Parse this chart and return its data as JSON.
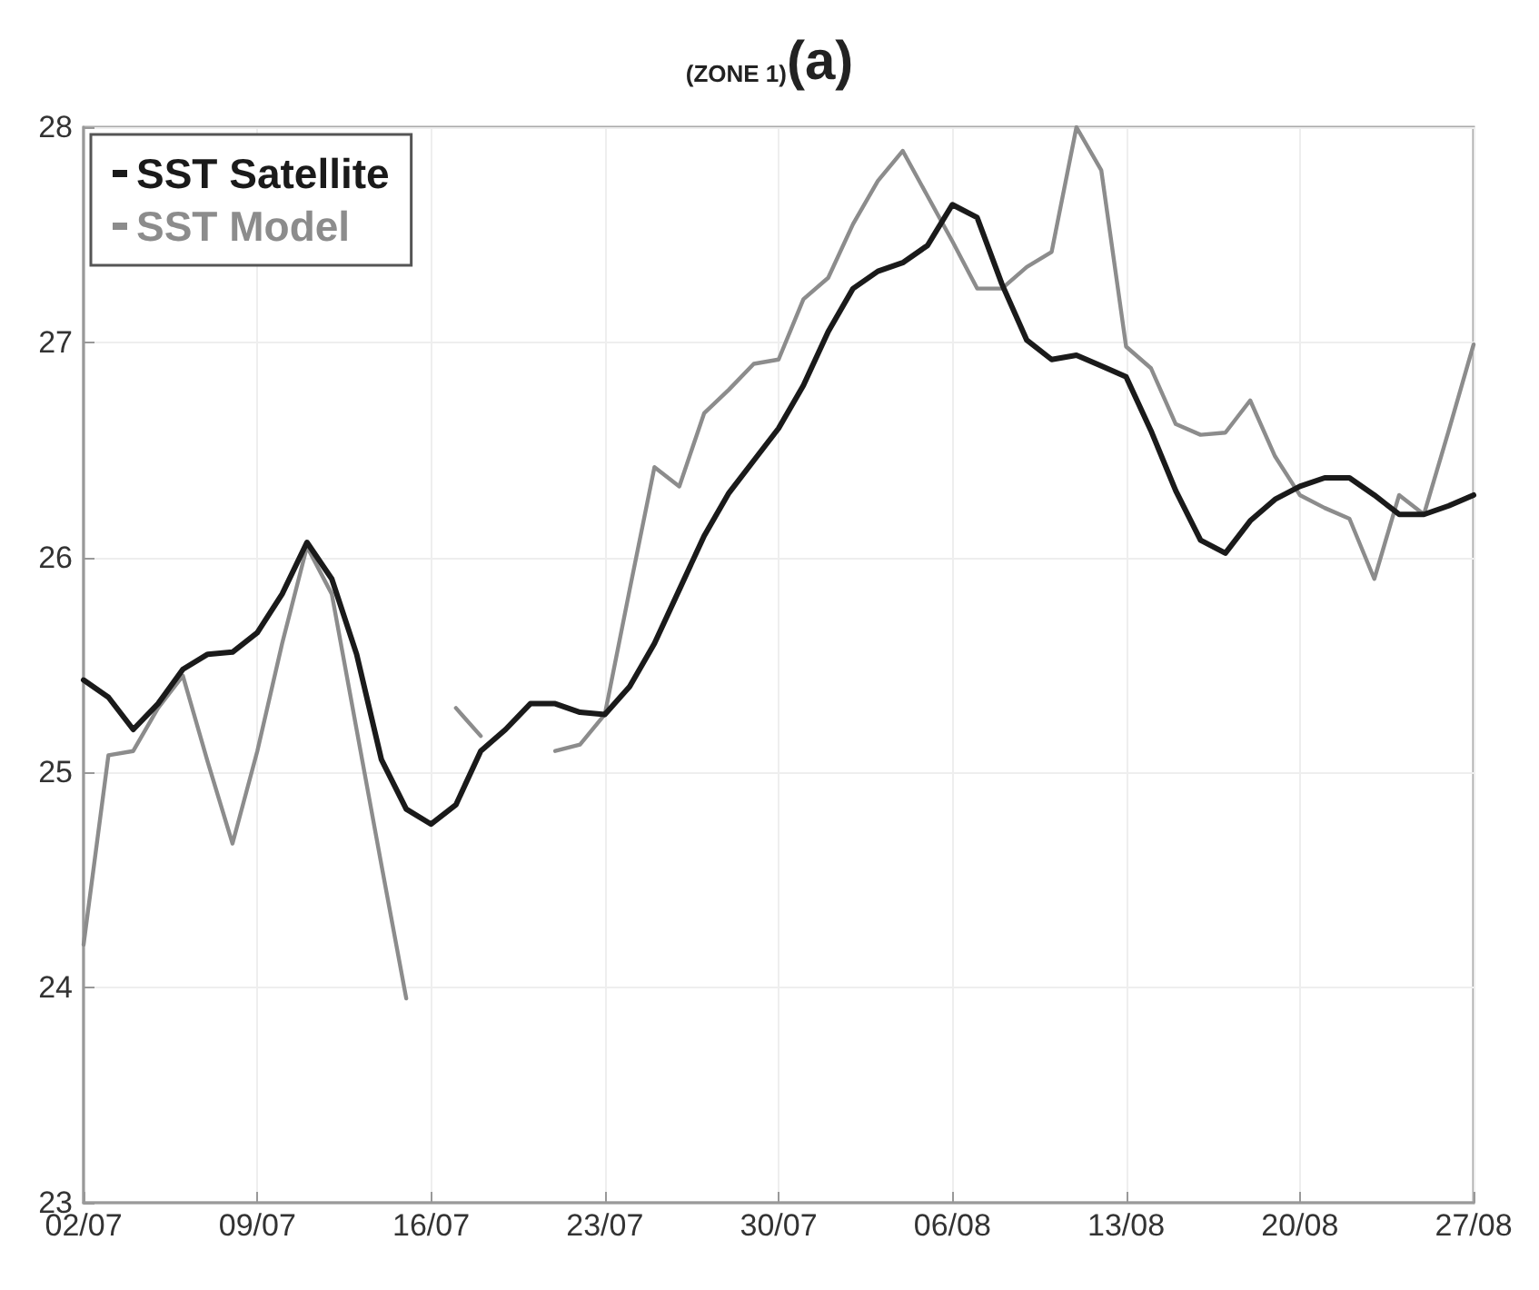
{
  "chart_data": {
    "type": "line",
    "title": "(ZONE 1)",
    "subtitle": "(a)",
    "x": [
      "--07-02",
      "--07-03",
      "--07-04",
      "--07-05",
      "--07-06",
      "--07-07",
      "--07-08",
      "--07-09",
      "--07-10",
      "--07-11",
      "--07-12",
      "--07-13",
      "--07-14",
      "--07-15",
      "--07-16",
      "--07-17",
      "--07-18",
      "--07-19",
      "--07-20",
      "--07-21",
      "--07-22",
      "--07-23",
      "--07-24",
      "--07-25",
      "--07-26",
      "--07-27",
      "--07-28",
      "--07-29",
      "--07-30",
      "--07-31",
      "--08-01",
      "--08-02",
      "--08-03",
      "--08-04",
      "--08-05",
      "--08-06",
      "--08-07",
      "--08-08",
      "--08-09",
      "--08-10",
      "--08-11",
      "--08-12",
      "--08-13",
      "--08-14",
      "--08-15",
      "--08-16",
      "--08-17",
      "--08-18",
      "--08-19",
      "--08-20",
      "--08-21",
      "--08-22",
      "--08-23",
      "--08-24",
      "--08-25",
      "--08-26",
      "--08-27"
    ],
    "series": [
      {
        "name": "SST Satellite",
        "color": "#1a1a1a",
        "values": [
          25.43,
          25.35,
          25.2,
          25.32,
          25.48,
          25.55,
          25.56,
          25.65,
          25.83,
          26.07,
          25.9,
          25.55,
          25.06,
          24.83,
          24.76,
          24.85,
          25.1,
          25.2,
          25.32,
          25.32,
          25.28,
          25.27,
          25.4,
          25.6,
          25.85,
          26.1,
          26.3,
          26.45,
          26.6,
          26.8,
          27.05,
          27.25,
          27.33,
          27.37,
          27.45,
          27.64,
          27.58,
          27.27,
          27.01,
          26.92,
          26.94,
          26.89,
          26.84,
          26.59,
          26.31,
          26.08,
          26.02,
          26.17,
          26.27,
          26.33,
          26.37,
          26.37,
          26.29,
          26.2,
          26.2,
          26.24,
          26.29
        ]
      },
      {
        "name": "SST Model",
        "color": "#8c8c8c",
        "values": [
          24.2,
          25.08,
          25.1,
          25.3,
          25.45,
          25.05,
          24.67,
          25.1,
          25.6,
          26.05,
          25.83,
          25.2,
          24.57,
          23.95,
          null,
          25.3,
          25.17,
          null,
          null,
          25.1,
          25.13,
          25.27,
          25.85,
          26.42,
          26.33,
          26.67,
          26.78,
          26.9,
          26.92,
          27.2,
          27.3,
          27.55,
          27.75,
          27.89,
          27.68,
          27.47,
          27.25,
          27.25,
          27.35,
          27.42,
          28.0,
          27.8,
          26.98,
          26.88,
          26.62,
          26.57,
          26.58,
          26.73,
          26.47,
          26.29,
          26.23,
          26.18,
          25.9,
          26.29,
          26.2,
          26.59,
          26.99
        ]
      }
    ],
    "xlim": [
      "--07-02",
      "--08-27"
    ],
    "xticks": [
      {
        "value": "--07-02",
        "label": "02/07"
      },
      {
        "value": "--07-09",
        "label": "09/07"
      },
      {
        "value": "--07-16",
        "label": "16/07"
      },
      {
        "value": "--07-23",
        "label": "23/07"
      },
      {
        "value": "--07-30",
        "label": "30/07"
      },
      {
        "value": "--08-06",
        "label": "06/08"
      },
      {
        "value": "--08-13",
        "label": "13/08"
      },
      {
        "value": "--08-20",
        "label": "20/08"
      },
      {
        "value": "--08-27",
        "label": "27/08"
      }
    ],
    "ylim": [
      23,
      28
    ],
    "yticks": [
      23,
      24,
      25,
      26,
      27,
      28
    ],
    "grid": true,
    "legend": "top left",
    "marker": "none",
    "line_style": "solid"
  }
}
